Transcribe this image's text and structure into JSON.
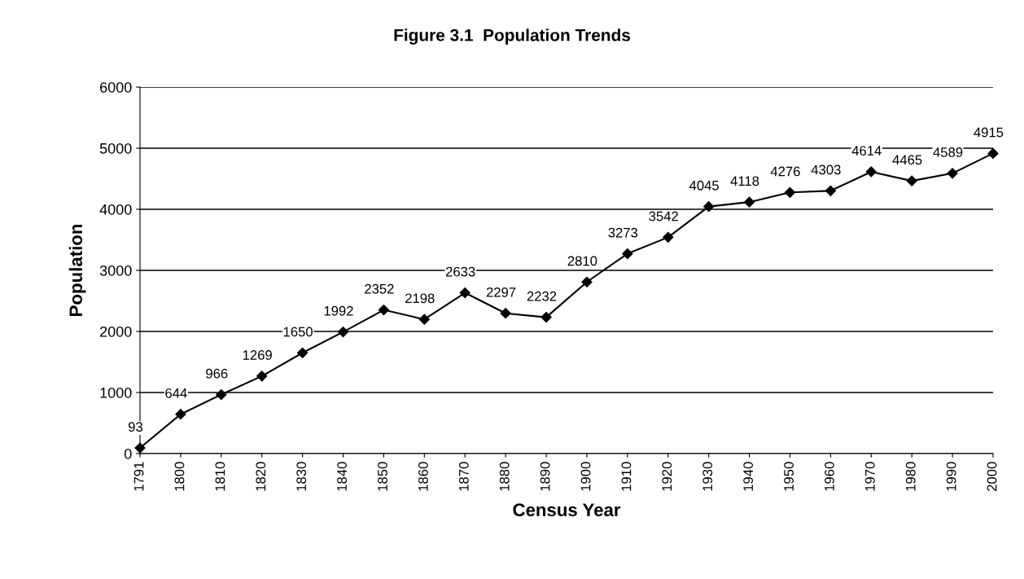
{
  "chart_data": {
    "type": "line",
    "title": "Figure 3.1  Population Trends",
    "xlabel": "Census Year",
    "ylabel": "Population",
    "categories": [
      "1791",
      "1800",
      "1810",
      "1820",
      "1830",
      "1840",
      "1850",
      "1860",
      "1870",
      "1880",
      "1890",
      "1900",
      "1910",
      "1920",
      "1930",
      "1940",
      "1950",
      "1960",
      "1970",
      "1980",
      "1990",
      "2000"
    ],
    "series": [
      {
        "color": "#000000",
        "values": [
          93,
          644,
          966,
          1269,
          1650,
          1992,
          2352,
          2198,
          2633,
          2297,
          2232,
          2810,
          3273,
          3542,
          4045,
          4118,
          4276,
          4303,
          4614,
          4465,
          4589,
          4915
        ]
      }
    ],
    "ylim": [
      0,
      6000
    ],
    "yticks": [
      0,
      1000,
      2000,
      3000,
      4000,
      5000,
      6000
    ],
    "grid": "y",
    "marker": "diamond",
    "line_style": "solid",
    "data_labels": true,
    "legend": false
  }
}
